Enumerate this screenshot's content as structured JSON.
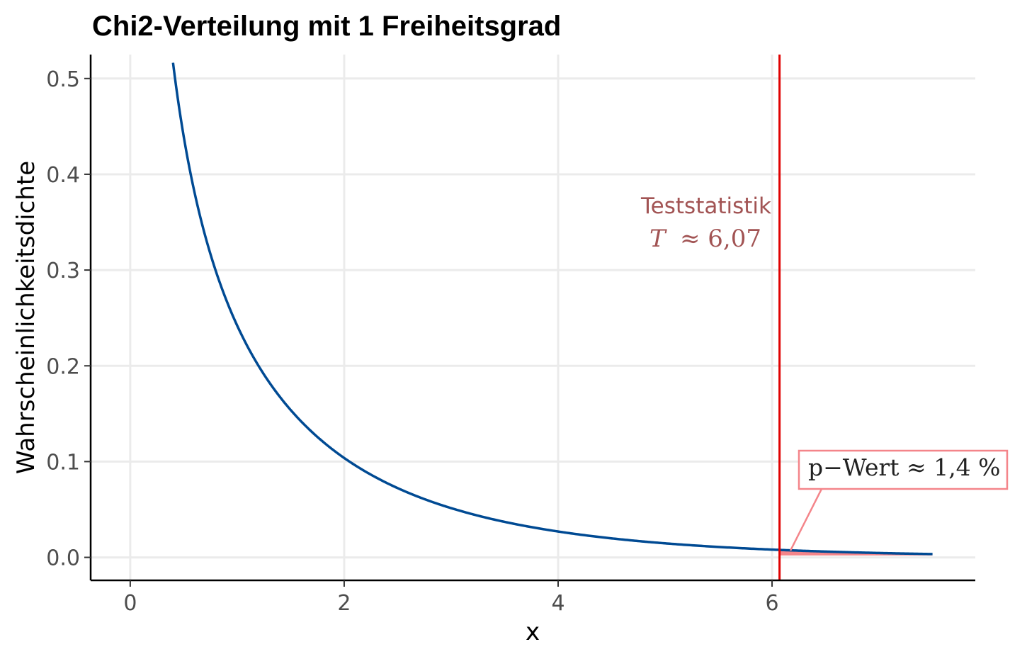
{
  "chart_data": {
    "type": "line",
    "title": "Chi2-Verteilung mit 1 Freiheitsgrad",
    "xlabel": "x",
    "ylabel": "Wahrscheinlichkeitsdichte",
    "xlim": [
      -0.37,
      7.9
    ],
    "ylim": [
      -0.024,
      0.525
    ],
    "x_ticks": [
      0,
      2,
      4,
      6
    ],
    "x_tick_labels": [
      "0",
      "2",
      "4",
      "6"
    ],
    "y_ticks": [
      0.0,
      0.1,
      0.2,
      0.3,
      0.4,
      0.5
    ],
    "y_tick_labels": [
      "0.0",
      "0.1",
      "0.2",
      "0.3",
      "0.4",
      "0.5"
    ],
    "grid": true,
    "series": [
      {
        "distribution": "chi-squared",
        "df": 1,
        "x_range": [
          0.4,
          7.5
        ],
        "color": "#004a93"
      }
    ],
    "shaded_region": {
      "x_from": 6.07,
      "x_to": 7.5,
      "color": "#f4858a"
    },
    "vline": {
      "x": 6.07,
      "color": "#e00000"
    },
    "annotations": {
      "test_label": "Teststatistik",
      "test_symbol": "T",
      "test_value": "≈ 6,07",
      "pvalue_label": "p−Wert ≈ 1,4 %",
      "text_color": "#a25454",
      "box_border_color": "#f4858a"
    }
  }
}
